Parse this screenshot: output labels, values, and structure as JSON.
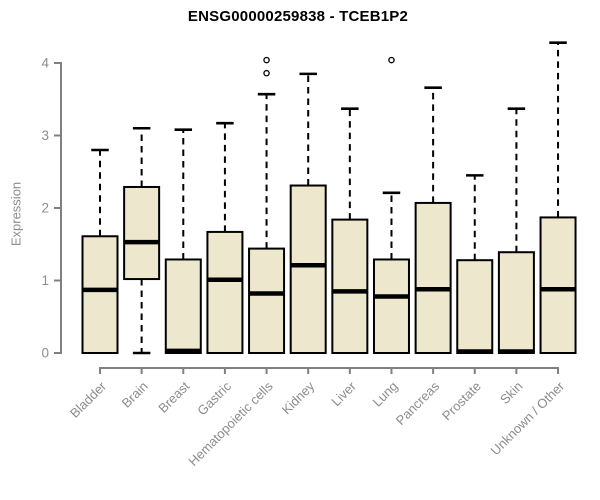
{
  "chart_data": {
    "type": "boxplot",
    "title": "ENSG00000259838 - TCEB1P2",
    "xlabel": "",
    "ylabel": "Expression",
    "ylim": [
      0,
      4.35
    ],
    "yticks": [
      0,
      1,
      2,
      3,
      4
    ],
    "grid": false,
    "legend": "none",
    "categories": [
      "Bladder",
      "Brain",
      "Breast",
      "Gastric",
      "Hematopoietic cells",
      "Kidney",
      "Liver",
      "Lung",
      "Pancreas",
      "Prostate",
      "Skin",
      "Unknown / Other"
    ],
    "boxes": [
      {
        "category": "Bladder",
        "whisker_low": 0,
        "q1": 0,
        "median": 0.87,
        "q3": 1.61,
        "whisker_high": 2.8,
        "outliers": []
      },
      {
        "category": "Brain",
        "whisker_low": 0,
        "q1": 1.02,
        "median": 1.53,
        "q3": 2.29,
        "whisker_high": 3.1,
        "outliers": []
      },
      {
        "category": "Breast",
        "whisker_low": 0,
        "q1": 0,
        "median": 0.03,
        "q3": 1.29,
        "whisker_high": 3.08,
        "outliers": []
      },
      {
        "category": "Gastric",
        "whisker_low": 0,
        "q1": 0,
        "median": 1.01,
        "q3": 1.67,
        "whisker_high": 3.17,
        "outliers": []
      },
      {
        "category": "Hematopoietic cells",
        "whisker_low": 0,
        "q1": 0,
        "median": 0.82,
        "q3": 1.44,
        "whisker_high": 3.57,
        "outliers": [
          3.86,
          4.04
        ]
      },
      {
        "category": "Kidney",
        "whisker_low": 0,
        "q1": 0,
        "median": 1.21,
        "q3": 2.31,
        "whisker_high": 3.85,
        "outliers": []
      },
      {
        "category": "Liver",
        "whisker_low": 0,
        "q1": 0,
        "median": 0.85,
        "q3": 1.84,
        "whisker_high": 3.37,
        "outliers": []
      },
      {
        "category": "Lung",
        "whisker_low": 0,
        "q1": 0,
        "median": 0.78,
        "q3": 1.29,
        "whisker_high": 2.21,
        "outliers": [
          4.04
        ]
      },
      {
        "category": "Pancreas",
        "whisker_low": 0,
        "q1": 0,
        "median": 0.88,
        "q3": 2.07,
        "whisker_high": 3.66,
        "outliers": []
      },
      {
        "category": "Prostate",
        "whisker_low": 0,
        "q1": 0,
        "median": 0.02,
        "q3": 1.28,
        "whisker_high": 2.45,
        "outliers": []
      },
      {
        "category": "Skin",
        "whisker_low": 0,
        "q1": 0,
        "median": 0.02,
        "q3": 1.39,
        "whisker_high": 3.37,
        "outliers": []
      },
      {
        "category": "Unknown / Other",
        "whisker_low": 0,
        "q1": 0,
        "median": 0.88,
        "q3": 1.87,
        "whisker_high": 4.28,
        "outliers": []
      }
    ],
    "colors": {
      "box_fill": "#ede8cd",
      "box_border": "#000000",
      "median": "#000000",
      "whisker": "#000000",
      "axis": "#808080",
      "tick_label": "#8c8c8c",
      "title": "#000000",
      "background": "#ffffff"
    }
  }
}
